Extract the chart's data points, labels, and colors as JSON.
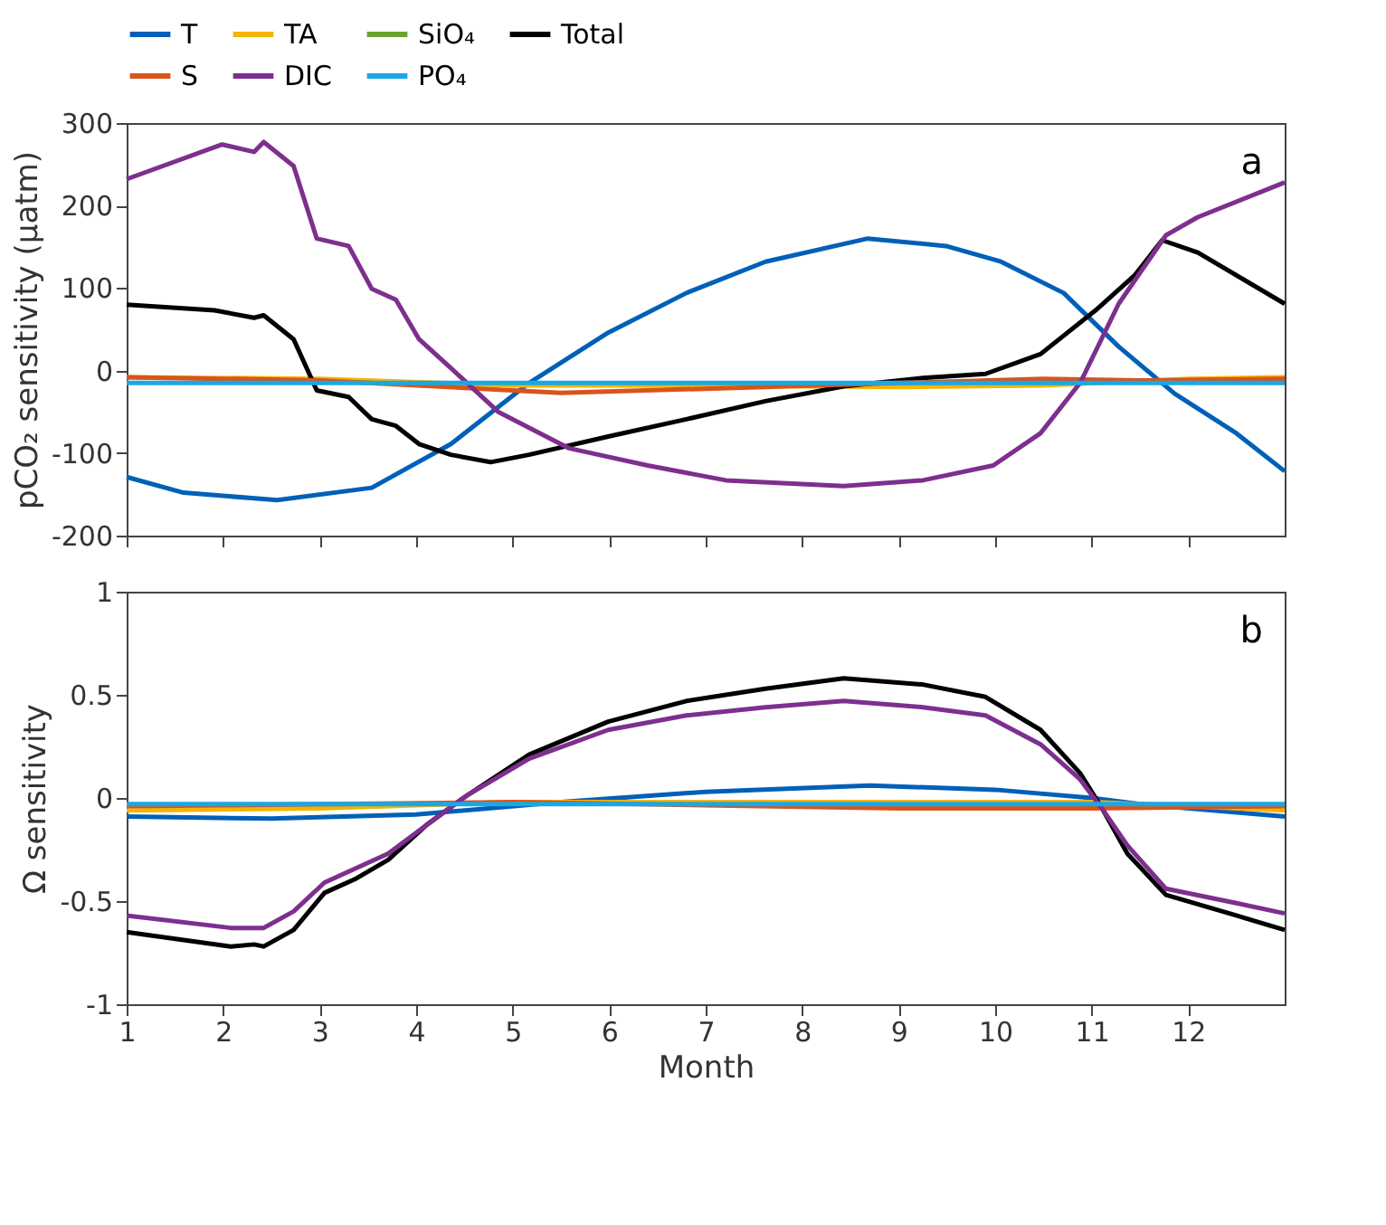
{
  "chart_data": [
    {
      "type": "line",
      "ylabel": "pCO₂ sensitivity (μatm)",
      "annotations": [
        "a"
      ],
      "xlim": [
        1,
        13
      ],
      "xticks": [
        1,
        2,
        3,
        4,
        5,
        6,
        7,
        8,
        9,
        10,
        11,
        12
      ],
      "ylim": [
        -200,
        300
      ],
      "yticks": [
        -200,
        -100,
        0,
        100,
        200,
        300
      ],
      "legend": "top",
      "tick_labels": "y",
      "line_style": "solid",
      "series": [
        {
          "name": "T",
          "color": "#0060b8",
          "x": [
            1,
            1.59,
            2.56,
            3.54,
            4.36,
            5.17,
            5.99,
            6.8,
            7.62,
            8.68,
            9.49,
            10.06,
            10.71,
            11.28,
            11.86,
            12.5,
            13
          ],
          "values": [
            -129,
            -148,
            -157,
            -142,
            -89,
            -15,
            46,
            94,
            132,
            160,
            151,
            132,
            94,
            29,
            -28,
            -76,
            -122
          ]
        },
        {
          "name": "TA",
          "color": "#f5b400",
          "x": [
            1,
            3,
            5,
            7,
            9,
            10.5,
            12,
            13
          ],
          "values": [
            -8,
            -10,
            -18,
            -18,
            -20,
            -18,
            -10,
            -8
          ]
        },
        {
          "name": "SiO₄",
          "color": "#6aa22e"
        },
        {
          "name": "Total",
          "color": "#000000",
          "x": [
            1,
            1.91,
            2.32,
            2.42,
            2.73,
            2.97,
            3.3,
            3.54,
            3.79,
            4.03,
            4.36,
            4.77,
            5.17,
            5.99,
            6.8,
            7.62,
            8.43,
            9.25,
            9.9,
            10.47,
            11.04,
            11.45,
            11.73,
            12.1,
            13
          ],
          "values": [
            80,
            73,
            64,
            67,
            38,
            -24,
            -32,
            -59,
            -67,
            -89,
            -102,
            -111,
            -102,
            -80,
            -59,
            -37,
            -19,
            -9,
            -4,
            20,
            73,
            116,
            158,
            143,
            81
          ]
        },
        {
          "name": "S",
          "color": "#d9541a",
          "x": [
            1,
            3,
            5.5,
            7,
            9,
            10.5,
            11.5,
            13
          ],
          "values": [
            -8,
            -12,
            -27,
            -22,
            -15,
            -10,
            -12,
            -10
          ]
        },
        {
          "name": "DIC",
          "color": "#7e2f8e",
          "x": [
            1,
            1.99,
            2.32,
            2.42,
            2.73,
            2.97,
            3.3,
            3.54,
            3.79,
            4.03,
            4.36,
            4.85,
            5.58,
            6.4,
            7.21,
            8.43,
            9.25,
            9.98,
            10.47,
            10.88,
            11.28,
            11.77,
            12.1,
            13
          ],
          "values": [
            232,
            274,
            265,
            277,
            248,
            160,
            151,
            99,
            86,
            38,
            3,
            -50,
            -94,
            -115,
            -133,
            -140,
            -133,
            -115,
            -76,
            -15,
            81,
            164,
            186,
            228
          ]
        },
        {
          "name": "PO₄",
          "color": "#1aa7e6",
          "x": [
            1,
            13
          ],
          "values": [
            -15,
            -15
          ]
        }
      ]
    },
    {
      "type": "line",
      "xlabel": "Month",
      "ylabel": "Ω sensitivity",
      "annotations": [
        "b"
      ],
      "xlim": [
        1,
        13
      ],
      "xticks": [
        1,
        2,
        3,
        4,
        5,
        6,
        7,
        8,
        9,
        10,
        11,
        12
      ],
      "ylim": [
        -1,
        1
      ],
      "yticks": [
        -1,
        -0.5,
        0,
        0.5,
        1
      ],
      "line_style": "solid",
      "series": [
        {
          "color": "#0060b8",
          "x": [
            1,
            2.5,
            4,
            5.5,
            7,
            8.7,
            10,
            11,
            11.5,
            13
          ],
          "values": [
            -0.09,
            -0.1,
            -0.08,
            -0.02,
            0.03,
            0.06,
            0.04,
            0.0,
            -0.03,
            -0.09
          ]
        },
        {
          "color": "#f5b400",
          "x": [
            1,
            3,
            5,
            7,
            9,
            11,
            12,
            13
          ],
          "values": [
            -0.06,
            -0.05,
            -0.02,
            -0.02,
            -0.02,
            -0.02,
            -0.04,
            -0.06
          ]
        },
        {
          "color": "#000000",
          "x": [
            1,
            2.08,
            2.32,
            2.42,
            2.73,
            3.05,
            3.38,
            3.71,
            4.11,
            4.52,
            5.17,
            5.99,
            6.8,
            7.62,
            8.43,
            9.25,
            9.9,
            10.47,
            10.88,
            11.12,
            11.37,
            11.77,
            12.5,
            13
          ],
          "values": [
            -0.65,
            -0.72,
            -0.71,
            -0.72,
            -0.64,
            -0.46,
            -0.39,
            -0.3,
            -0.13,
            0.01,
            0.21,
            0.37,
            0.47,
            0.53,
            0.58,
            0.55,
            0.49,
            0.33,
            0.12,
            -0.06,
            -0.27,
            -0.47,
            -0.57,
            -0.64
          ]
        },
        {
          "color": "#d9541a",
          "x": [
            1,
            5,
            9,
            11,
            13
          ],
          "values": [
            -0.04,
            -0.02,
            -0.05,
            -0.05,
            -0.04
          ]
        },
        {
          "color": "#7e2f8e",
          "x": [
            1,
            2.08,
            2.42,
            2.73,
            3.05,
            3.38,
            3.71,
            4.11,
            4.52,
            5.17,
            5.99,
            6.8,
            7.62,
            8.43,
            9.25,
            9.9,
            10.47,
            10.88,
            11.12,
            11.37,
            11.77,
            12.5,
            13
          ],
          "values": [
            -0.57,
            -0.63,
            -0.63,
            -0.55,
            -0.41,
            -0.34,
            -0.27,
            -0.13,
            0.01,
            0.19,
            0.33,
            0.4,
            0.44,
            0.47,
            0.44,
            0.4,
            0.26,
            0.09,
            -0.06,
            -0.23,
            -0.44,
            -0.51,
            -0.56
          ]
        },
        {
          "color": "#1aa7e6",
          "x": [
            1,
            13
          ],
          "values": [
            -0.03,
            -0.03
          ]
        }
      ]
    }
  ]
}
